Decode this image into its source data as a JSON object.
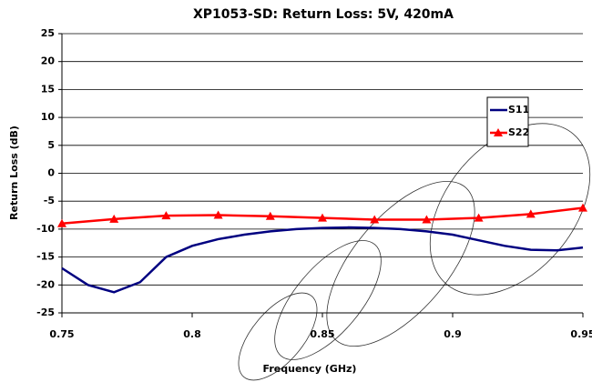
{
  "chart_data": {
    "type": "line",
    "title": "XP1053-SD: Return Loss: 5V, 420mA",
    "x_label": "Frequency (GHz)",
    "y_label": "Return Loss (dB)",
    "xlim": [
      0.75,
      0.95
    ],
    "xticks": [
      0.75,
      0.8,
      0.85,
      0.9,
      0.95
    ],
    "ylim": [
      -25,
      25
    ],
    "yticks": [
      -25,
      -20,
      -15,
      -10,
      -5,
      0,
      5,
      10,
      15,
      20,
      25
    ],
    "grid": true,
    "legend": "upper right",
    "series": [
      {
        "name": "S11",
        "color": "#000080",
        "marker": "none",
        "x": [
          0.75,
          0.76,
          0.77,
          0.78,
          0.79,
          0.8,
          0.81,
          0.82,
          0.83,
          0.84,
          0.85,
          0.86,
          0.87,
          0.88,
          0.89,
          0.9,
          0.91,
          0.92,
          0.93,
          0.94,
          0.95
        ],
        "values": [
          -17,
          -20,
          -21.3,
          -19.5,
          -15,
          -13,
          -11.8,
          -11,
          -10.4,
          -10,
          -9.8,
          -9.7,
          -9.8,
          -10,
          -10.4,
          -11,
          -12,
          -13,
          -13.7,
          -13.8,
          -13.3
        ]
      },
      {
        "name": "S22",
        "color": "#ff0000",
        "marker": "triangle",
        "x": [
          0.75,
          0.77,
          0.79,
          0.81,
          0.83,
          0.85,
          0.87,
          0.89,
          0.91,
          0.93,
          0.95
        ],
        "values": [
          -9,
          -8.2,
          -7.6,
          -7.5,
          -7.7,
          -8,
          -8.3,
          -8.3,
          -8,
          -7.3,
          -6.2
        ]
      }
    ]
  }
}
